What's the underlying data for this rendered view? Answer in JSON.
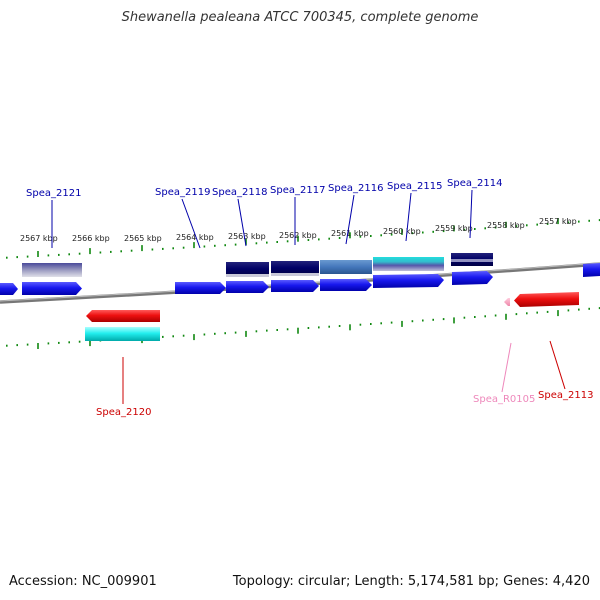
{
  "title": "Shewanella pealeana ATCC 700345, complete genome",
  "footer": {
    "accession": "Accession: NC_009901",
    "summary": "Topology: circular; Length: 5,174,581 bp; Genes: 4,420"
  },
  "colors": {
    "forward_gene": "#1010ee",
    "reverse_gene": "#ee1010",
    "ticks": "#118811",
    "backbone": "#888888",
    "forward_label": "#0000aa",
    "reverse_label": "#cc0000",
    "rna_label": "#ee88bb"
  },
  "scale": {
    "labels": [
      "2567 kbp",
      "2566 kbp",
      "2565 kbp",
      "2564 kbp",
      "2563 kbp",
      "2562 kbp",
      "2561 kbp",
      "2560 kbp",
      "2559 kbp",
      "2558 kbp",
      "2557 kbp"
    ]
  },
  "genes": [
    {
      "name": "Spea_2121",
      "strand": "forward"
    },
    {
      "name": "Spea_2119",
      "strand": "forward"
    },
    {
      "name": "Spea_2118",
      "strand": "forward"
    },
    {
      "name": "Spea_2117",
      "strand": "forward"
    },
    {
      "name": "Spea_2116",
      "strand": "forward"
    },
    {
      "name": "Spea_2115",
      "strand": "forward"
    },
    {
      "name": "Spea_2114",
      "strand": "forward"
    },
    {
      "name": "Spea_2120",
      "strand": "reverse"
    },
    {
      "name": "Spea_R0105",
      "strand": "reverse",
      "type": "rna"
    },
    {
      "name": "Spea_2113",
      "strand": "reverse"
    }
  ]
}
